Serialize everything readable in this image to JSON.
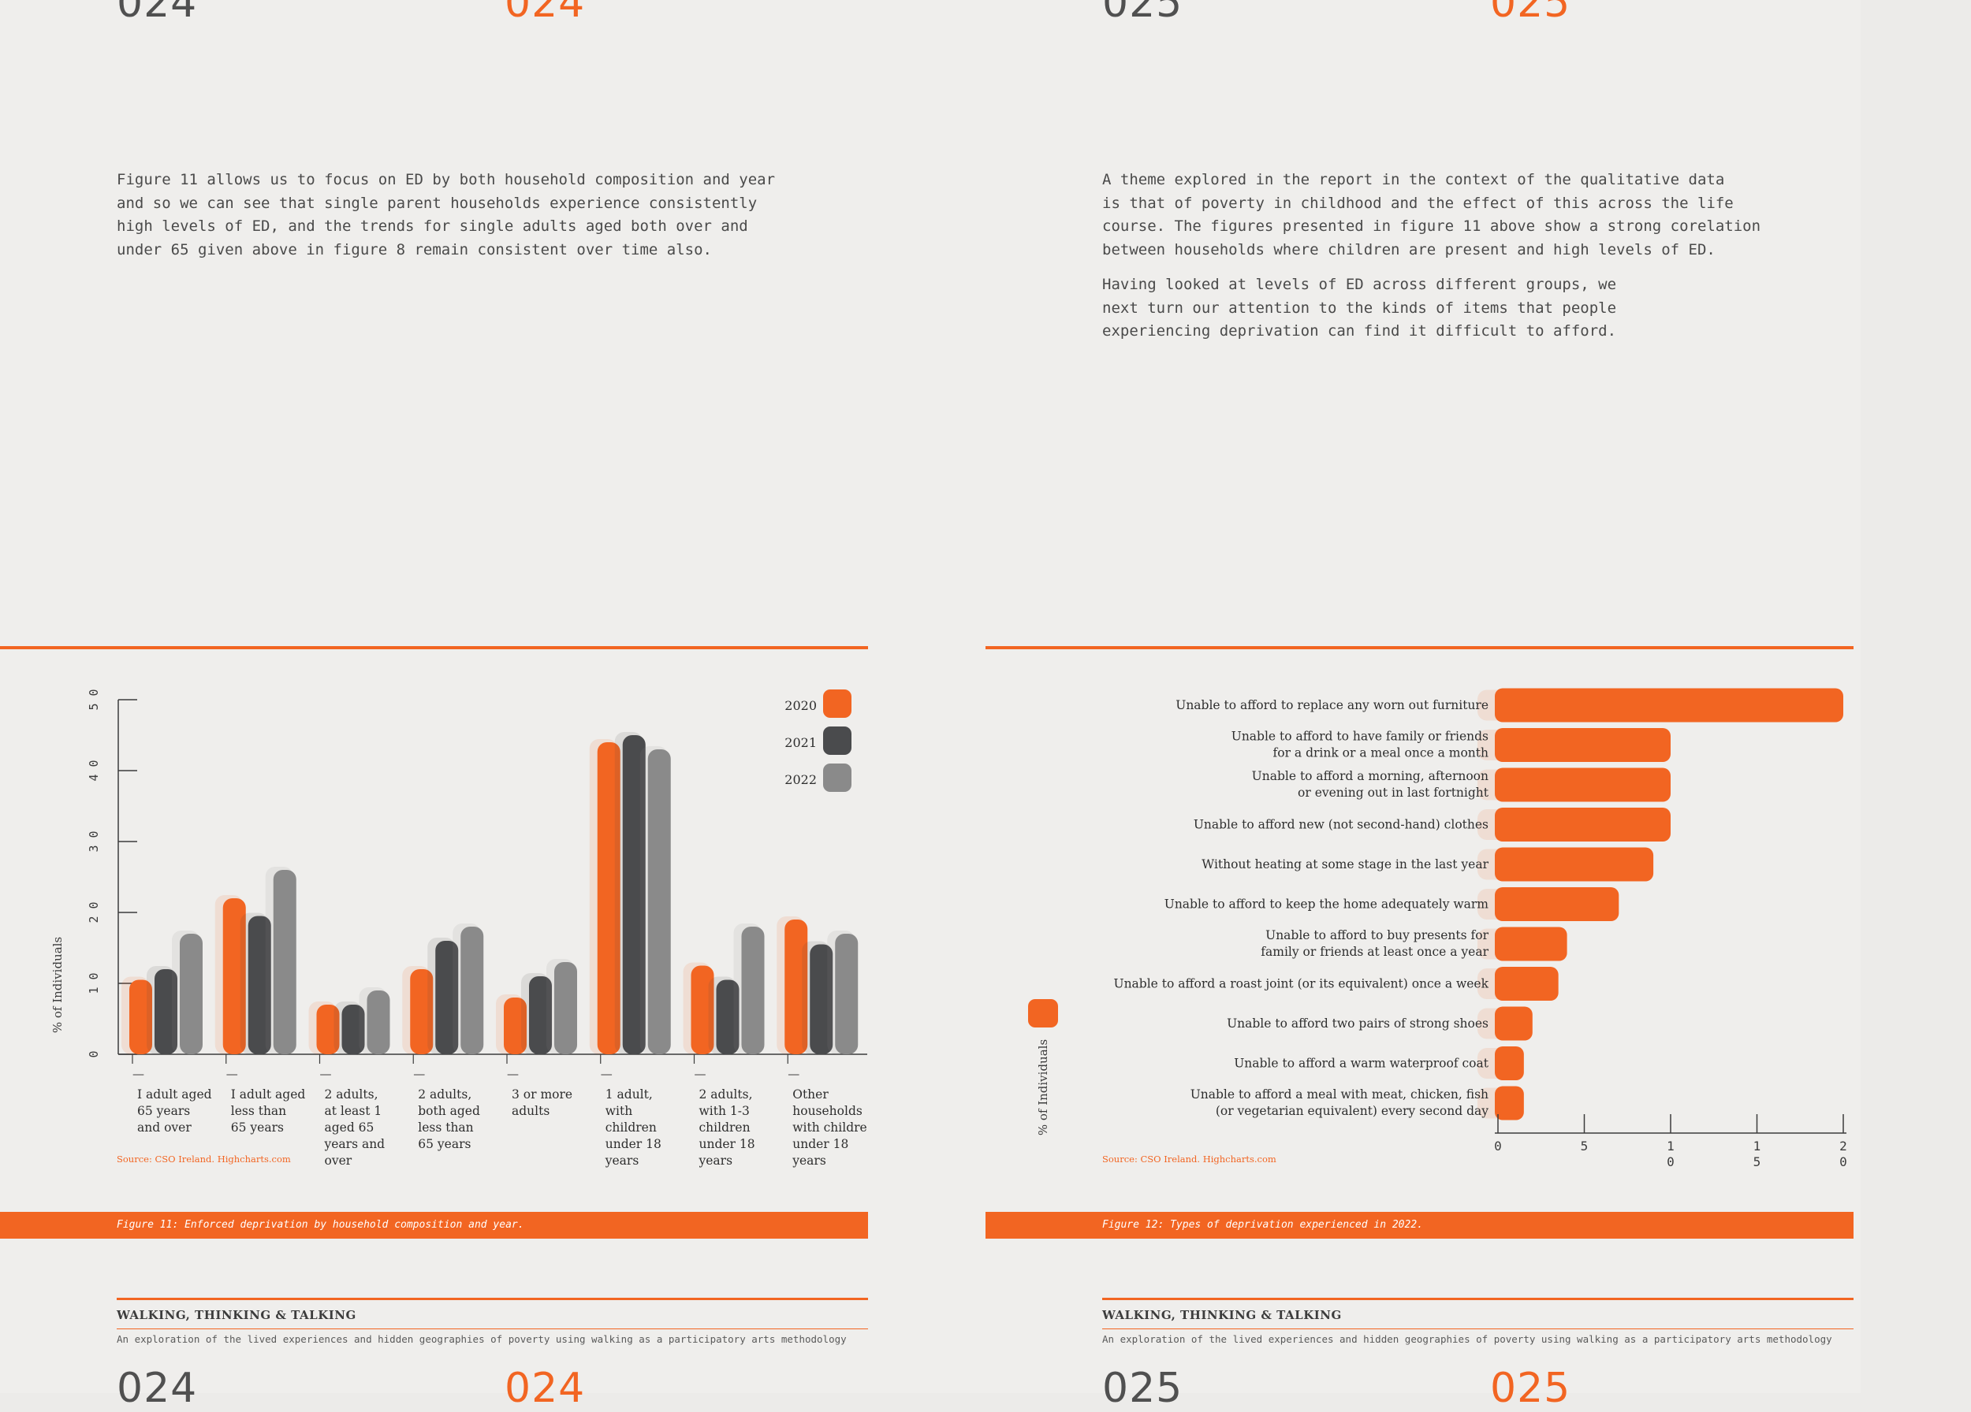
{
  "pages": {
    "left": {
      "num_grey": "024",
      "num_orange": "024"
    },
    "right": {
      "num_grey": "025",
      "num_orange": "025"
    }
  },
  "left_text": "Figure 11 allows us to focus on ED by both household composition and year\nand so we can see that single parent households experience consistently\nhigh levels of ED, and the trends for single adults aged both over and\nunder 65 given above in figure 8 remain consistent over time also.",
  "right_text_1": "A theme explored in the report in the context of the qualitative data\nis that of poverty in childhood and the effect of this across the life\ncourse. The figures presented in figure 11 above show a strong corelation\nbetween households where children are present and high levels of ED.",
  "right_text_2": "Having looked at levels of ED across different groups, we\nnext turn our attention to the kinds of items that people\nexperiencing deprivation can find it difficult to afford.",
  "fig11": {
    "caption": "Figure 11: Enforced deprivation by household composition and year.",
    "source": "Source: CSO Ireland. Highcharts.com"
  },
  "fig12": {
    "caption": "Figure 12: Types of deprivation experienced in 2022.",
    "source": "Source: CSO Ireland. Highcharts.com"
  },
  "footer": {
    "title": "WALKING, THINKING & TALKING",
    "subtitle": "An exploration of the lived experiences and hidden geographies of poverty using walking as a participatory arts methodology"
  },
  "colors": {
    "orange": "#f26522",
    "dark": "#4a4b4d",
    "grey": "#8a8a8a"
  },
  "chart_data": [
    {
      "type": "bar",
      "title": "",
      "ylabel": "% of Individuals",
      "ylim": [
        0,
        50
      ],
      "yticks": [
        "0",
        "10",
        "20",
        "30",
        "40",
        "50"
      ],
      "categories": [
        [
          "I adult aged",
          "65 years",
          "and over"
        ],
        [
          "I adult aged",
          "less than",
          "65 years"
        ],
        [
          "2 adults,",
          "at least 1",
          "aged 65",
          "years and",
          "over"
        ],
        [
          "2 adults,",
          "both aged",
          "less than",
          "65 years"
        ],
        [
          "3 or more",
          "adults"
        ],
        [
          "1 adult,",
          "with",
          "children",
          "under 18",
          "years"
        ],
        [
          "2 adults,",
          "with 1-3",
          "children",
          "under 18",
          "years"
        ],
        [
          "Other",
          "households",
          "with childre",
          "under 18",
          "years"
        ]
      ],
      "series": [
        {
          "name": "2020",
          "values": [
            10.5,
            22,
            7,
            12,
            8,
            44,
            12.5,
            19
          ]
        },
        {
          "name": "2021",
          "values": [
            12,
            19.5,
            7,
            16,
            11,
            45,
            10.5,
            15.5
          ]
        },
        {
          "name": "2022",
          "values": [
            17,
            26,
            9,
            18,
            13,
            43,
            18,
            17
          ]
        }
      ],
      "legend": "top-right"
    },
    {
      "type": "bar",
      "orientation": "horizontal",
      "title": "",
      "ylabel": "% of Individuals",
      "xlim": [
        0,
        20
      ],
      "xticks": [
        "0",
        "5",
        "10",
        "15",
        "20"
      ],
      "categories": [
        [
          "Unable to afford to replace any worn out furniture"
        ],
        [
          "Unable to afford to have family or friends",
          "for a drink or a meal once a month"
        ],
        [
          "Unable to afford a morning, afternoon",
          "or evening out in last fortnight"
        ],
        [
          "Unable to afford new (not second-hand) clothes"
        ],
        [
          "Without heating at some stage in the last year"
        ],
        [
          "Unable to afford to keep the home adequately warm"
        ],
        [
          "Unable to afford to buy presents for",
          "family or friends at least once a year"
        ],
        [
          "Unable to afford a roast joint (or its equivalent) once a week"
        ],
        [
          "Unable to afford two pairs of strong shoes"
        ],
        [
          "Unable to afford a warm waterproof coat"
        ],
        [
          "Unable to afford a meal with meat, chicken, fish",
          "(or vegetarian equivalent) every second day"
        ]
      ],
      "values": [
        20,
        10,
        10,
        10,
        9,
        7,
        4,
        3.5,
        2,
        1.5,
        1.5
      ]
    }
  ]
}
